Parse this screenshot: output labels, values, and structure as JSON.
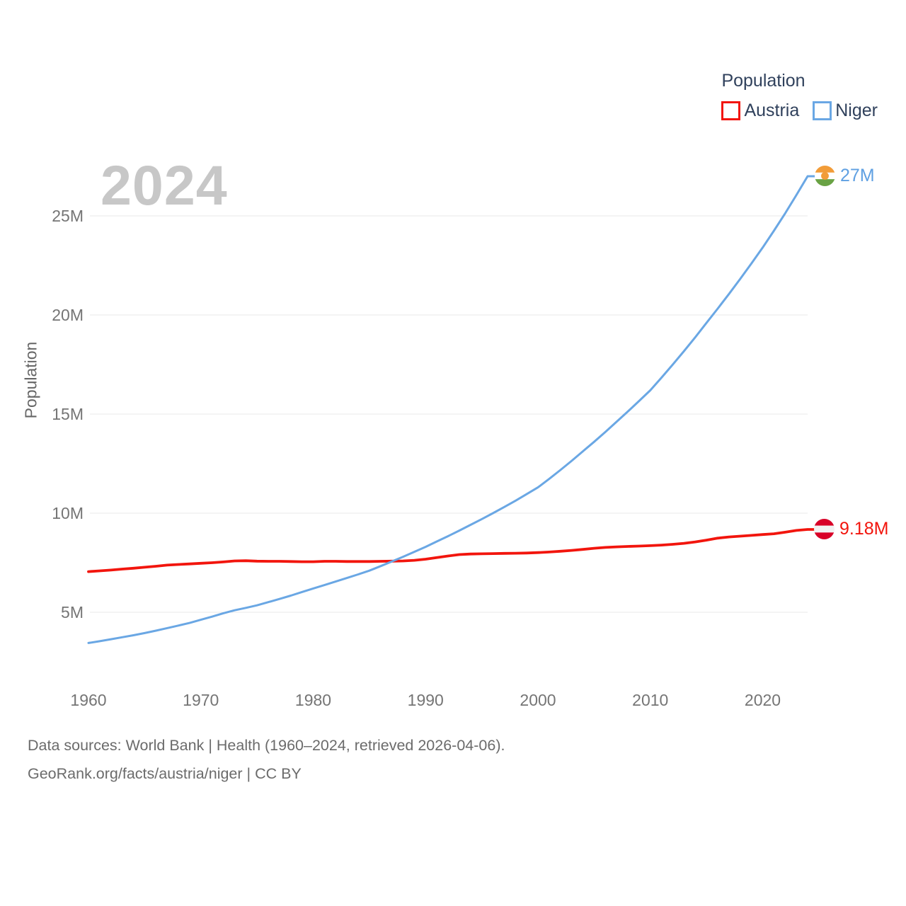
{
  "chart": {
    "watermark": "2024",
    "y_axis_label": "Population"
  },
  "legend": {
    "title": "Population",
    "items": [
      {
        "label": "Austria",
        "color": "#f2150d"
      },
      {
        "label": "Niger",
        "color": "#6aa7e4"
      }
    ]
  },
  "end_labels": {
    "niger": "27M",
    "austria": "9.18M"
  },
  "footer": {
    "line1": "Data sources: World Bank | Health (1960–2024, retrieved 2026-04-06).",
    "line2": "GeoRank.org/facts/austria/niger | CC BY"
  },
  "flag_colors": {
    "austria_red": "#d80027",
    "flag_white": "#f2f2f2",
    "niger_orange": "#f29c38",
    "niger_green": "#69a244"
  },
  "chart_data": {
    "type": "line",
    "title": "Population",
    "watermark_year": "2024",
    "ylabel": "Population",
    "grid": true,
    "legend_position": "top-right",
    "ylim": [
      3.0,
      28.5
    ],
    "xlim": [
      1960,
      2024
    ],
    "x_ticks": [
      1960,
      1970,
      1980,
      1990,
      2000,
      2010,
      2020
    ],
    "y_ticks": [
      {
        "value": 5,
        "label": "5M"
      },
      {
        "value": 10,
        "label": "10M"
      },
      {
        "value": 15,
        "label": "15M"
      },
      {
        "value": 20,
        "label": "20M"
      },
      {
        "value": 25,
        "label": "25M"
      }
    ],
    "x": [
      1960,
      1961,
      1962,
      1963,
      1964,
      1965,
      1966,
      1967,
      1968,
      1969,
      1970,
      1971,
      1972,
      1973,
      1974,
      1975,
      1976,
      1977,
      1978,
      1979,
      1980,
      1981,
      1982,
      1983,
      1984,
      1985,
      1986,
      1987,
      1988,
      1989,
      1990,
      1991,
      1992,
      1993,
      1994,
      1995,
      1996,
      1997,
      1998,
      1999,
      2000,
      2001,
      2002,
      2003,
      2004,
      2005,
      2006,
      2007,
      2008,
      2009,
      2010,
      2011,
      2012,
      2013,
      2014,
      2015,
      2016,
      2017,
      2018,
      2019,
      2020,
      2021,
      2022,
      2023,
      2024
    ],
    "series": [
      {
        "name": "Austria",
        "color": "#f2150d",
        "end_label": "9.18M",
        "end_value_millions": 9.18,
        "values": [
          7.05,
          7.09,
          7.13,
          7.18,
          7.22,
          7.27,
          7.32,
          7.38,
          7.41,
          7.44,
          7.47,
          7.5,
          7.54,
          7.59,
          7.6,
          7.58,
          7.57,
          7.57,
          7.56,
          7.55,
          7.55,
          7.57,
          7.57,
          7.56,
          7.56,
          7.56,
          7.57,
          7.58,
          7.59,
          7.62,
          7.68,
          7.76,
          7.84,
          7.91,
          7.94,
          7.95,
          7.96,
          7.97,
          7.98,
          7.99,
          8.01,
          8.04,
          8.08,
          8.12,
          8.17,
          8.23,
          8.27,
          8.3,
          8.32,
          8.34,
          8.36,
          8.39,
          8.43,
          8.48,
          8.55,
          8.64,
          8.74,
          8.8,
          8.84,
          8.88,
          8.92,
          8.96,
          9.04,
          9.13,
          9.18
        ]
      },
      {
        "name": "Niger",
        "color": "#6aa7e4",
        "end_label": "27M",
        "end_value_millions": 27.0,
        "values": [
          3.45,
          3.54,
          3.64,
          3.74,
          3.84,
          3.95,
          4.07,
          4.2,
          4.33,
          4.46,
          4.62,
          4.78,
          4.95,
          5.1,
          5.22,
          5.35,
          5.51,
          5.67,
          5.84,
          6.02,
          6.2,
          6.37,
          6.55,
          6.73,
          6.91,
          7.1,
          7.33,
          7.56,
          7.8,
          8.05,
          8.3,
          8.57,
          8.84,
          9.12,
          9.41,
          9.7,
          10.0,
          10.31,
          10.63,
          10.96,
          11.3,
          11.73,
          12.18,
          12.64,
          13.12,
          13.6,
          14.1,
          14.61,
          15.13,
          15.66,
          16.2,
          16.84,
          17.5,
          18.18,
          18.88,
          19.6,
          20.32,
          21.06,
          21.82,
          22.6,
          23.4,
          24.25,
          25.13,
          26.05,
          27.0
        ]
      }
    ]
  }
}
